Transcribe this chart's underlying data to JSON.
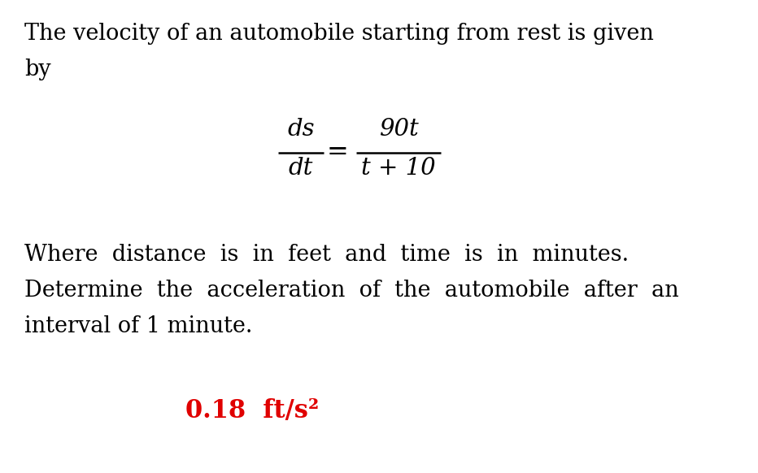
{
  "background_color": "#ffffff",
  "title_text_line1": "The velocity of an automobile starting from rest is given",
  "title_text_line2": "by",
  "formula_ds": "ds",
  "formula_dt": "dt",
  "formula_equals": "=",
  "formula_num": "90t",
  "formula_den": "t + 10",
  "body_line1": "Where  distance  is  in  feet  and  time  is  in  minutes.",
  "body_line2": "Determine  the  acceleration  of  the  automobile  after  an",
  "body_line3": "interval of 1 minute.",
  "answer_text": "0.18  ft/s²",
  "answer_color": "#e00000",
  "text_color": "#000000",
  "font_size_title": 19.5,
  "font_size_formula": 21,
  "font_size_body": 19.5,
  "font_size_answer": 22
}
